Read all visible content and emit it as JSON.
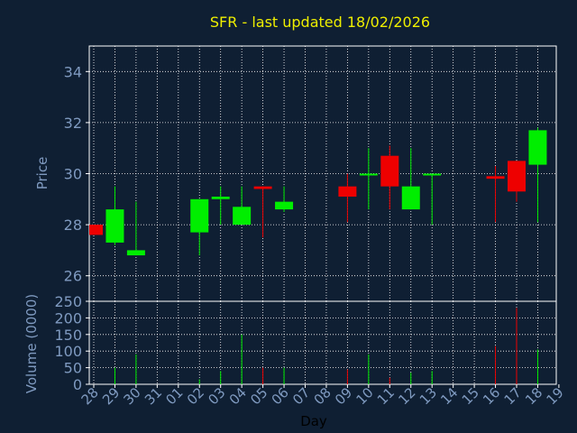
{
  "chart_data": [
    {
      "type": "candlestick",
      "title": "SFR - last updated 18/02/2026",
      "ylabel": "Price",
      "ylim": [
        25,
        35
      ],
      "yticks": [
        26,
        28,
        30,
        32,
        34
      ],
      "grid": true,
      "colors": {
        "up": "#00ee00",
        "down": "#ee0000",
        "title": "#eeee00",
        "axis_text": "#7f9ac0",
        "background": "#0f1f33"
      },
      "x_labels": [
        "28",
        "29",
        "30",
        "31",
        "01",
        "02",
        "03",
        "04",
        "05",
        "06",
        "07",
        "08",
        "09",
        "10",
        "11",
        "12",
        "13",
        "14",
        "15",
        "16",
        "17",
        "18",
        "19"
      ],
      "candles": [
        {
          "day": "28",
          "open": 28.0,
          "high": 28.0,
          "low": 27.6,
          "close": 27.6
        },
        {
          "day": "29",
          "open": 27.3,
          "high": 29.5,
          "low": 27.2,
          "close": 28.6
        },
        {
          "day": "30",
          "open": 26.8,
          "high": 28.9,
          "low": 26.8,
          "close": 27.0
        },
        {
          "day": "02",
          "open": 27.7,
          "high": 29.0,
          "low": 26.8,
          "close": 29.0
        },
        {
          "day": "03",
          "open": 29.0,
          "high": 29.5,
          "low": 28.0,
          "close": 29.1
        },
        {
          "day": "04",
          "open": 28.0,
          "high": 29.5,
          "low": 28.0,
          "close": 28.7
        },
        {
          "day": "05",
          "open": 29.5,
          "high": 29.5,
          "low": 27.5,
          "close": 29.4
        },
        {
          "day": "06",
          "open": 28.6,
          "high": 29.5,
          "low": 28.5,
          "close": 28.9
        },
        {
          "day": "09",
          "open": 29.5,
          "high": 30.0,
          "low": 28.1,
          "close": 29.1
        },
        {
          "day": "10",
          "open": 29.95,
          "high": 31.0,
          "low": 28.6,
          "close": 30.0
        },
        {
          "day": "11",
          "open": 30.7,
          "high": 31.1,
          "low": 28.6,
          "close": 29.5
        },
        {
          "day": "12",
          "open": 28.6,
          "high": 31.0,
          "low": 28.6,
          "close": 29.5
        },
        {
          "day": "13",
          "open": 29.95,
          "high": 30.0,
          "low": 28.0,
          "close": 30.0
        },
        {
          "day": "16",
          "open": 29.9,
          "high": 30.3,
          "low": 28.1,
          "close": 29.8
        },
        {
          "day": "17",
          "open": 30.5,
          "high": 30.5,
          "low": 28.9,
          "close": 29.3
        },
        {
          "day": "18",
          "open": 30.35,
          "high": 31.8,
          "low": 28.1,
          "close": 31.7
        }
      ]
    },
    {
      "type": "bar",
      "ylabel": "Volume (0000)",
      "xlabel": "Day",
      "ylim": [
        0,
        250
      ],
      "yticks": [
        0,
        50,
        100,
        150,
        200,
        250
      ],
      "grid": true,
      "categories": [
        "28",
        "29",
        "30",
        "02",
        "03",
        "04",
        "05",
        "06",
        "09",
        "10",
        "11",
        "12",
        "13",
        "16",
        "17",
        "18"
      ],
      "values": [
        0,
        50,
        90,
        15,
        40,
        150,
        50,
        50,
        45,
        90,
        20,
        35,
        40,
        115,
        230,
        105
      ],
      "directions": [
        "down",
        "up",
        "up",
        "up",
        "up",
        "up",
        "down",
        "up",
        "down",
        "up",
        "down",
        "up",
        "up",
        "down",
        "down",
        "up"
      ]
    }
  ]
}
